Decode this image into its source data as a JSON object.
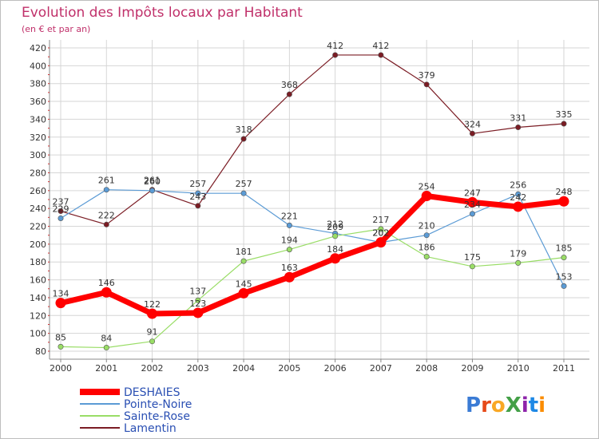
{
  "chart_data": {
    "type": "line",
    "title": "Evolution des Impôts locaux par Habitant",
    "subtitle": "(en € et par an)",
    "xlabel": "",
    "ylabel": "",
    "ylim": [
      80,
      420
    ],
    "yticks": [
      80,
      100,
      120,
      140,
      160,
      180,
      200,
      220,
      240,
      260,
      280,
      300,
      320,
      340,
      360,
      380,
      400,
      420
    ],
    "categories": [
      "2000",
      "2001",
      "2002",
      "2003",
      "2004",
      "2005",
      "2006",
      "2007",
      "2008",
      "2009",
      "2010",
      "2011"
    ],
    "series": [
      {
        "name": "DESHAIES",
        "color": "#ff0000",
        "values": [
          134,
          146,
          122,
          123,
          145,
          163,
          184,
          202,
          254,
          247,
          242,
          248
        ]
      },
      {
        "name": "Pointe-Noire",
        "color": "#5b9bd5",
        "values": [
          229,
          261,
          260,
          257,
          257,
          221,
          212,
          202,
          210,
          234,
          256,
          153
        ]
      },
      {
        "name": "Sainte-Rose",
        "color": "#99dd66",
        "values": [
          85,
          84,
          91,
          137,
          181,
          194,
          209,
          217,
          186,
          175,
          179,
          185
        ]
      },
      {
        "name": "Lamentin",
        "color": "#7b1c24",
        "values": [
          237,
          222,
          261,
          243,
          318,
          368,
          412,
          412,
          379,
          324,
          331,
          335
        ]
      }
    ],
    "legend_position": "bottom-left"
  },
  "logo": {
    "text": "ProXiti"
  }
}
